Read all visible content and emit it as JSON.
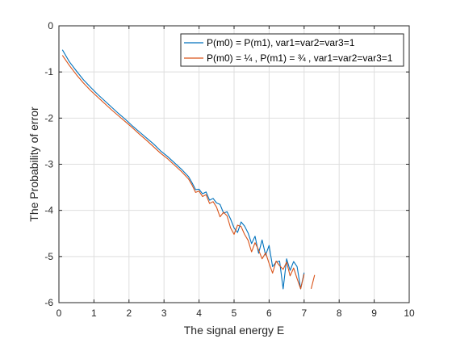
{
  "chart_data": {
    "type": "line",
    "title": "",
    "xlabel": "The signal energy E",
    "ylabel": "The Probability of error",
    "xlim": [
      0,
      10
    ],
    "ylim": [
      -6,
      0
    ],
    "xticks": [
      0,
      1,
      2,
      3,
      4,
      5,
      6,
      7,
      8,
      9,
      10
    ],
    "yticks": [
      0,
      -1,
      -2,
      -3,
      -4,
      -5,
      -6
    ],
    "grid": true,
    "legend_position": "top-right",
    "series": [
      {
        "name": "P(m0) = P(m1), var1=var2=var3=1",
        "color": "#0072BD",
        "points": [
          [
            0.1,
            -0.52
          ],
          [
            0.3,
            -0.78
          ],
          [
            0.5,
            -0.98
          ],
          [
            0.7,
            -1.17
          ],
          [
            0.9,
            -1.33
          ],
          [
            1.1,
            -1.48
          ],
          [
            1.3,
            -1.62
          ],
          [
            1.5,
            -1.76
          ],
          [
            1.7,
            -1.9
          ],
          [
            1.9,
            -2.03
          ],
          [
            2.1,
            -2.17
          ],
          [
            2.3,
            -2.3
          ],
          [
            2.5,
            -2.43
          ],
          [
            2.7,
            -2.56
          ],
          [
            2.9,
            -2.71
          ],
          [
            3.1,
            -2.83
          ],
          [
            3.3,
            -2.97
          ],
          [
            3.5,
            -3.11
          ],
          [
            3.7,
            -3.27
          ],
          [
            3.8,
            -3.4
          ],
          [
            3.9,
            -3.55
          ],
          [
            4.0,
            -3.54
          ],
          [
            4.1,
            -3.64
          ],
          [
            4.2,
            -3.6
          ],
          [
            4.3,
            -3.78
          ],
          [
            4.4,
            -3.74
          ],
          [
            4.5,
            -3.84
          ],
          [
            4.6,
            -3.87
          ],
          [
            4.7,
            -4.06
          ],
          [
            4.8,
            -4.03
          ],
          [
            4.9,
            -4.19
          ],
          [
            5.0,
            -4.38
          ],
          [
            5.1,
            -4.48
          ],
          [
            5.2,
            -4.25
          ],
          [
            5.3,
            -4.34
          ],
          [
            5.4,
            -4.49
          ],
          [
            5.5,
            -4.72
          ],
          [
            5.6,
            -4.56
          ],
          [
            5.7,
            -4.93
          ],
          [
            5.8,
            -4.64
          ],
          [
            5.9,
            -4.97
          ],
          [
            6.0,
            -4.76
          ],
          [
            6.1,
            -5.22
          ],
          [
            6.2,
            -5.12
          ],
          [
            6.3,
            -5.1
          ],
          [
            6.4,
            -5.7
          ],
          [
            6.5,
            -5.05
          ],
          [
            6.6,
            -5.3
          ],
          [
            6.7,
            -5.11
          ],
          [
            6.8,
            -5.22
          ],
          [
            6.9,
            -5.7
          ],
          [
            7.0,
            -5.35
          ]
        ]
      },
      {
        "name": "P(m0) = ¼ , P(m1) = ¾ , var1=var2=var3=1",
        "color": "#D95319",
        "points": [
          [
            0.1,
            -0.64
          ],
          [
            0.3,
            -0.86
          ],
          [
            0.5,
            -1.06
          ],
          [
            0.7,
            -1.24
          ],
          [
            0.9,
            -1.4
          ],
          [
            1.1,
            -1.54
          ],
          [
            1.3,
            -1.68
          ],
          [
            1.5,
            -1.82
          ],
          [
            1.7,
            -1.95
          ],
          [
            1.9,
            -2.08
          ],
          [
            2.1,
            -2.21
          ],
          [
            2.3,
            -2.35
          ],
          [
            2.5,
            -2.48
          ],
          [
            2.7,
            -2.62
          ],
          [
            2.9,
            -2.76
          ],
          [
            3.1,
            -2.88
          ],
          [
            3.3,
            -3.02
          ],
          [
            3.5,
            -3.16
          ],
          [
            3.7,
            -3.32
          ],
          [
            3.8,
            -3.45
          ],
          [
            3.9,
            -3.61
          ],
          [
            4.0,
            -3.58
          ],
          [
            4.1,
            -3.7
          ],
          [
            4.2,
            -3.66
          ],
          [
            4.3,
            -3.85
          ],
          [
            4.4,
            -3.81
          ],
          [
            4.5,
            -3.93
          ],
          [
            4.6,
            -4.14
          ],
          [
            4.7,
            -4.04
          ],
          [
            4.8,
            -4.12
          ],
          [
            4.9,
            -4.38
          ],
          [
            5.0,
            -4.52
          ],
          [
            5.1,
            -4.32
          ],
          [
            5.2,
            -4.35
          ],
          [
            5.3,
            -4.52
          ],
          [
            5.4,
            -4.65
          ],
          [
            5.5,
            -4.9
          ],
          [
            5.6,
            -4.7
          ],
          [
            5.7,
            -4.86
          ],
          [
            5.8,
            -5.05
          ],
          [
            5.9,
            -4.92
          ],
          [
            6.0,
            -5.15
          ],
          [
            6.1,
            -5.36
          ],
          [
            6.2,
            -5.1
          ],
          [
            6.3,
            -5.2
          ],
          [
            6.4,
            -5.28
          ],
          [
            6.5,
            -5.12
          ],
          [
            6.6,
            -5.42
          ],
          [
            6.7,
            -5.25
          ],
          [
            6.8,
            -5.48
          ],
          [
            6.9,
            -5.7
          ],
          [
            7.0,
            -5.38
          ],
          [
            7.1,
            null
          ],
          [
            7.2,
            -5.7
          ],
          [
            7.3,
            -5.4
          ]
        ]
      }
    ]
  }
}
